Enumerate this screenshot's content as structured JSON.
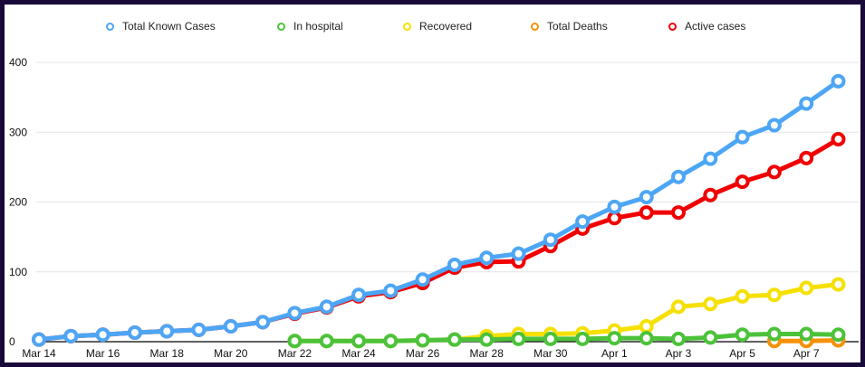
{
  "chart_data": {
    "type": "line",
    "title": "",
    "xlabel": "",
    "ylabel": "",
    "ylim": [
      0,
      400
    ],
    "yticks": [
      0,
      100,
      200,
      300,
      400
    ],
    "grid": true,
    "legend_position": "top",
    "x": [
      "Mar 14",
      "Mar 15",
      "Mar 16",
      "Mar 17",
      "Mar 18",
      "Mar 19",
      "Mar 20",
      "Mar 21",
      "Mar 22",
      "Mar 23",
      "Mar 24",
      "Mar 25",
      "Mar 26",
      "Mar 27",
      "Mar 28",
      "Mar 29",
      "Mar 30",
      "Mar 31",
      "Apr 1",
      "Apr 2",
      "Apr 3",
      "Apr 4",
      "Apr 5",
      "Apr 6",
      "Apr 7",
      "Apr 8"
    ],
    "xtick_labels": [
      "Mar 14",
      "Mar 16",
      "Mar 18",
      "Mar 20",
      "Mar 22",
      "Mar 24",
      "Mar 26",
      "Mar 28",
      "Mar 30",
      "Apr 1",
      "Apr 3",
      "Apr 5",
      "Apr 7"
    ],
    "series": [
      {
        "name": "Total Known Cases",
        "color": "#4da6f5",
        "values": [
          3,
          8,
          10,
          13,
          15,
          17,
          22,
          28,
          41,
          50,
          67,
          73,
          89,
          110,
          120,
          126,
          146,
          172,
          193,
          207,
          236,
          262,
          293,
          310,
          341,
          373
        ]
      },
      {
        "name": "In hospital",
        "color": "#4cc23a",
        "values": [
          null,
          null,
          null,
          null,
          null,
          null,
          null,
          null,
          1,
          1,
          1,
          1,
          2,
          3,
          3,
          4,
          4,
          4,
          5,
          5,
          4,
          6,
          10,
          11,
          11,
          10
        ]
      },
      {
        "name": "Recovered",
        "color": "#f5e000",
        "values": [
          null,
          null,
          null,
          null,
          null,
          null,
          null,
          null,
          1,
          1,
          1,
          1,
          2,
          3,
          8,
          11,
          11,
          12,
          16,
          22,
          50,
          54,
          65,
          67,
          77,
          82
        ]
      },
      {
        "name": "Total Deaths",
        "color": "#f5920a",
        "values": [
          null,
          null,
          null,
          null,
          null,
          null,
          null,
          null,
          null,
          null,
          null,
          null,
          null,
          null,
          null,
          null,
          null,
          null,
          null,
          null,
          null,
          null,
          null,
          1,
          1,
          2
        ]
      },
      {
        "name": "Active cases",
        "color": "#f00000",
        "values": [
          3,
          8,
          10,
          13,
          15,
          17,
          22,
          28,
          40,
          49,
          65,
          71,
          84,
          106,
          114,
          115,
          137,
          162,
          177,
          185,
          185,
          210,
          229,
          243,
          263,
          290
        ]
      }
    ]
  }
}
